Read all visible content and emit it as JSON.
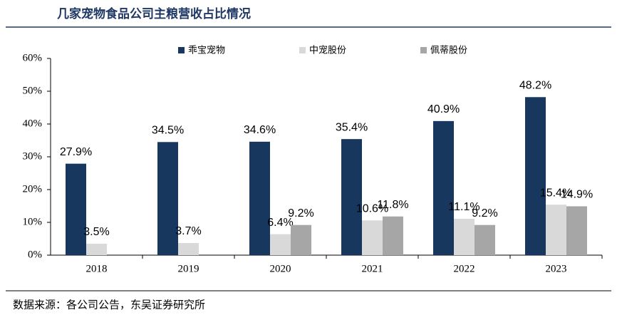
{
  "chart_data": {
    "type": "bar",
    "title": "几家宠物食品公司主粮营收占比情况",
    "source": "数据来源：各公司公告，东吴证券研究所",
    "categories": [
      "2018",
      "2019",
      "2020",
      "2021",
      "2022",
      "2023"
    ],
    "series": [
      {
        "name": "乖宝宠物",
        "color": "#17375e",
        "values": [
          27.9,
          34.5,
          34.6,
          35.4,
          40.9,
          48.2
        ],
        "value_labels": [
          "27.9%",
          "34.5%",
          "34.6%",
          "35.4%",
          "40.9%",
          "48.2%"
        ]
      },
      {
        "name": "中宠股份",
        "color": "#d9d9d9",
        "values": [
          3.5,
          3.7,
          6.4,
          10.6,
          11.1,
          15.4
        ],
        "value_labels": [
          "3.5%",
          "3.7%",
          "6.4%",
          "10.6%",
          "11.1%",
          "15.4%"
        ]
      },
      {
        "name": "佩蒂股份",
        "color": "#a6a6a6",
        "values": [
          null,
          null,
          9.2,
          11.8,
          9.2,
          14.9
        ],
        "value_labels": [
          null,
          null,
          "9.2%",
          "11.8%",
          "9.2%",
          "14.9%"
        ]
      }
    ],
    "ylim": [
      0,
      60
    ],
    "yticks": [
      {
        "value": 0,
        "label": "0%"
      },
      {
        "value": 10,
        "label": "10%"
      },
      {
        "value": 20,
        "label": "20%"
      },
      {
        "value": 30,
        "label": "30%"
      },
      {
        "value": 40,
        "label": "40%"
      },
      {
        "value": 50,
        "label": "50%"
      },
      {
        "value": 60,
        "label": "60%"
      }
    ],
    "grid": false
  }
}
